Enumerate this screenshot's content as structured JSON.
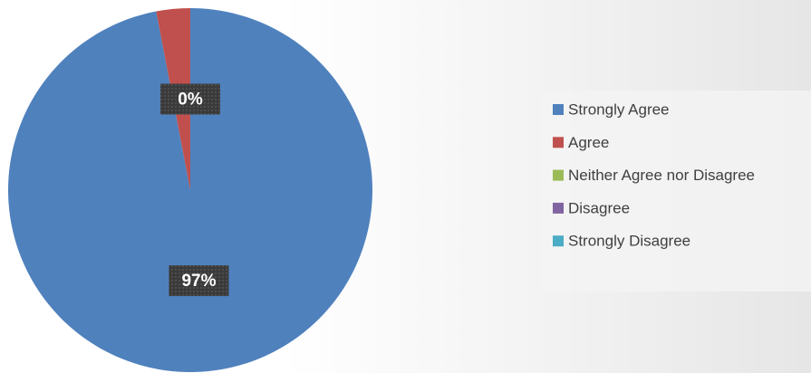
{
  "chart_data": {
    "type": "pie",
    "categories": [
      "Strongly Agree",
      "Agree",
      "Neither Agree nor Disagree",
      "Disagree",
      "Strongly Disagree"
    ],
    "values": [
      97,
      3,
      0,
      0,
      0
    ],
    "value_labels": [
      "97%",
      null,
      "0%",
      "0%",
      "0%"
    ],
    "colors": [
      "#4f81bd",
      "#c0504d",
      "#9bbb59",
      "#8064a2",
      "#4bacc6"
    ],
    "legend": "right"
  }
}
